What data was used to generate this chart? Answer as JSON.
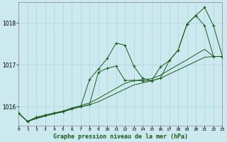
{
  "title": "Graphe pression niveau de la mer (hPa)",
  "yticks": [
    1016,
    1017,
    1018
  ],
  "ylim": [
    1015.55,
    1018.5
  ],
  "xlim": [
    0,
    23
  ],
  "bg_color": "#cce9f0",
  "line_color": "#1a5c1a",
  "grid_color": "#aad4de",
  "line_main": [
    1015.85,
    1015.65,
    1015.75,
    1015.8,
    1015.85,
    1015.88,
    1015.95,
    1016.0,
    1016.65,
    1016.9,
    1017.15,
    1017.52,
    1017.47,
    1016.97,
    1016.68,
    1016.62,
    1016.95,
    1017.1,
    1017.35,
    1017.97,
    1018.18,
    1018.37,
    1017.93,
    1017.2
  ],
  "line_secondary": [
    1015.85,
    1015.65,
    1015.75,
    1015.8,
    1015.85,
    1015.88,
    1015.95,
    1016.0,
    1016.05,
    1016.82,
    1016.92,
    1016.97,
    1016.63,
    1016.63,
    1016.62,
    1016.62,
    1016.68,
    1017.1,
    1017.35,
    1017.97,
    1018.18,
    1017.93,
    1017.2,
    1017.2
  ],
  "line_trend1": [
    1015.85,
    1015.65,
    1015.72,
    1015.78,
    1015.83,
    1015.88,
    1015.95,
    1016.0,
    1016.05,
    1016.12,
    1016.22,
    1016.32,
    1016.42,
    1016.52,
    1016.57,
    1016.62,
    1016.68,
    1016.78,
    1016.88,
    1016.98,
    1017.08,
    1017.18,
    1017.2,
    1017.2
  ],
  "line_trend2": [
    1015.85,
    1015.65,
    1015.72,
    1015.78,
    1015.85,
    1015.9,
    1015.97,
    1016.03,
    1016.09,
    1016.2,
    1016.32,
    1016.44,
    1016.56,
    1016.62,
    1016.65,
    1016.67,
    1016.75,
    1016.88,
    1017.0,
    1017.12,
    1017.25,
    1017.37,
    1017.2,
    1017.2
  ]
}
